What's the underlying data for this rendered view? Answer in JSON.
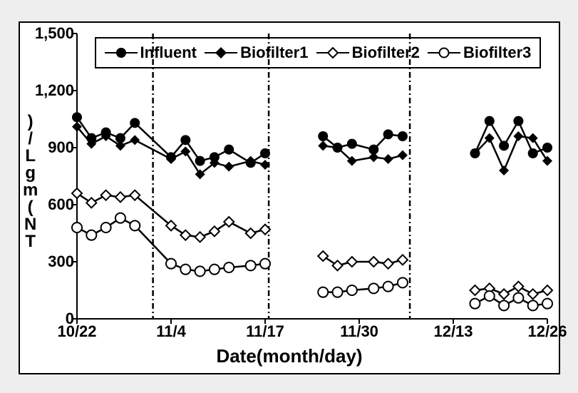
{
  "chart": {
    "type": "line",
    "background_color": "#ffffff",
    "outer_background": "#eeeeee",
    "border_color": "#000000",
    "axis_color": "#000000",
    "line_color": "#000000",
    "line_width": 2.5,
    "marker_size": 7,
    "xlabel": "Date(month/day)",
    "ylabel_chars": [
      ")",
      "/",
      "L",
      "g",
      "m",
      "(",
      "N",
      "T"
    ],
    "label_fontsize": 26,
    "tick_fontsize": 22,
    "ylim": [
      0,
      1500
    ],
    "ytick_step": 300,
    "yticks": [
      0,
      300,
      600,
      900,
      1200,
      1500
    ],
    "ytick_labels": [
      "0",
      "300",
      "600",
      "900",
      "1,200",
      "1,500"
    ],
    "x_categories": [
      "10/22",
      "11/4",
      "11/17",
      "11/30",
      "12/13",
      "12/26"
    ],
    "x_tick_positions": [
      0,
      13,
      26,
      39,
      52,
      65
    ],
    "x_domain": [
      0,
      65
    ],
    "vertical_lines": [
      10.5,
      26.5,
      46
    ],
    "vertical_line_dash": "8,4,2,4",
    "series": [
      {
        "name": "Influent",
        "marker": "circle-filled",
        "x": [
          0,
          2,
          4,
          6,
          8,
          13,
          15,
          17,
          19,
          21,
          24,
          26,
          34,
          36,
          38,
          41,
          43,
          45,
          55,
          57,
          59,
          61,
          63,
          65
        ],
        "y": [
          1060,
          950,
          980,
          950,
          1030,
          850,
          940,
          830,
          850,
          890,
          820,
          870,
          960,
          900,
          920,
          890,
          970,
          960,
          870,
          1040,
          910,
          1040,
          870,
          900
        ]
      },
      {
        "name": "Biofilter1",
        "marker": "diamond-filled",
        "x": [
          0,
          2,
          4,
          6,
          8,
          13,
          15,
          17,
          19,
          21,
          24,
          26,
          34,
          36,
          38,
          41,
          43,
          45,
          55,
          57,
          59,
          61,
          63,
          65
        ],
        "y": [
          1010,
          920,
          960,
          910,
          940,
          840,
          880,
          760,
          820,
          800,
          830,
          810,
          910,
          900,
          830,
          850,
          840,
          860,
          870,
          950,
          780,
          960,
          950,
          830
        ]
      },
      {
        "name": "Biofilter2",
        "marker": "diamond-open",
        "x": [
          0,
          2,
          4,
          6,
          8,
          13,
          15,
          17,
          19,
          21,
          24,
          26,
          34,
          36,
          38,
          41,
          43,
          45,
          55,
          57,
          59,
          61,
          63,
          65
        ],
        "y": [
          660,
          610,
          650,
          640,
          650,
          490,
          440,
          430,
          460,
          510,
          450,
          470,
          330,
          280,
          300,
          300,
          290,
          310,
          150,
          160,
          130,
          170,
          130,
          150
        ]
      },
      {
        "name": "Biofilter3",
        "marker": "circle-open",
        "x": [
          0,
          2,
          4,
          6,
          8,
          13,
          15,
          17,
          19,
          21,
          24,
          26,
          34,
          36,
          38,
          41,
          43,
          45,
          55,
          57,
          59,
          61,
          63,
          65
        ],
        "y": [
          480,
          440,
          480,
          530,
          490,
          290,
          260,
          250,
          260,
          270,
          280,
          290,
          140,
          140,
          150,
          160,
          170,
          190,
          80,
          120,
          70,
          110,
          70,
          80
        ]
      }
    ],
    "legend": {
      "items": [
        "Influent",
        "Biofilter1",
        "Biofilter2",
        "Biofilter3"
      ],
      "border_color": "#000000",
      "fontsize": 22
    }
  }
}
